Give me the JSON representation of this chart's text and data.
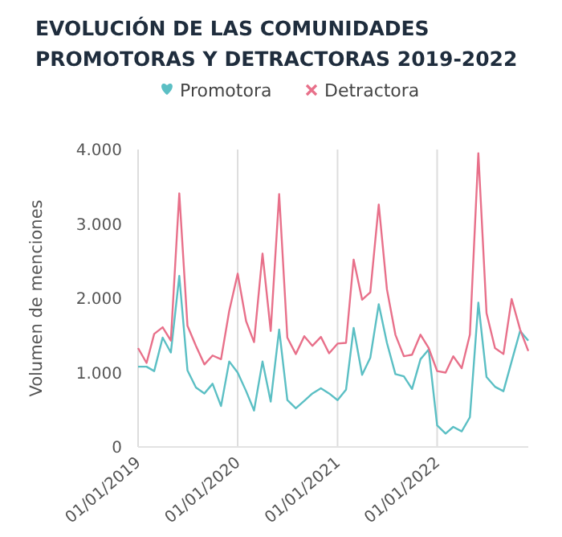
{
  "chart_data": {
    "type": "line",
    "title": "EVOLUCIÓN DE LAS COMUNIDADES PROMOTORAS Y DETRACTORAS 2019-2022",
    "ylabel": "Volumen de menciones",
    "x": [
      "2019-01",
      "2019-02",
      "2019-03",
      "2019-04",
      "2019-05",
      "2019-06",
      "2019-07",
      "2019-08",
      "2019-09",
      "2019-10",
      "2019-11",
      "2019-12",
      "2020-01",
      "2020-02",
      "2020-03",
      "2020-04",
      "2020-05",
      "2020-06",
      "2020-07",
      "2020-08",
      "2020-09",
      "2020-10",
      "2020-11",
      "2020-12",
      "2021-01",
      "2021-02",
      "2021-03",
      "2021-04",
      "2021-05",
      "2021-06",
      "2021-07",
      "2021-08",
      "2021-09",
      "2021-10",
      "2021-11",
      "2021-12",
      "2022-01",
      "2022-02",
      "2022-03",
      "2022-04",
      "2022-05",
      "2022-06",
      "2022-07",
      "2022-08",
      "2022-09",
      "2022-10",
      "2022-11",
      "2022-12"
    ],
    "series": [
      {
        "name": "Promotora",
        "color": "#5bbfc4",
        "values": [
          1080,
          1080,
          1020,
          1470,
          1270,
          2300,
          1030,
          800,
          720,
          850,
          550,
          1150,
          1000,
          750,
          490,
          1150,
          610,
          1580,
          630,
          520,
          620,
          720,
          790,
          720,
          630,
          770,
          1600,
          970,
          1200,
          1920,
          1400,
          980,
          950,
          780,
          1180,
          1310,
          290,
          180,
          270,
          210,
          400,
          1940,
          940,
          810,
          750,
          1150,
          1560,
          1430
        ]
      },
      {
        "name": "Detractora",
        "color": "#e8708a",
        "values": [
          1330,
          1130,
          1520,
          1610,
          1430,
          3410,
          1630,
          1360,
          1110,
          1230,
          1180,
          1830,
          2330,
          1690,
          1410,
          2600,
          1560,
          3400,
          1470,
          1250,
          1490,
          1360,
          1480,
          1260,
          1390,
          1400,
          2520,
          1980,
          2080,
          3260,
          2120,
          1510,
          1220,
          1240,
          1510,
          1330,
          1020,
          1000,
          1220,
          1060,
          1510,
          3950,
          1800,
          1330,
          1250,
          1990,
          1580,
          1290
        ]
      }
    ],
    "xlim": [
      "2019-01",
      "2022-12"
    ],
    "xticks": [
      {
        "value": "2019-01-01",
        "label": "01/01/2019"
      },
      {
        "value": "2020-01-01",
        "label": "01/01/2020"
      },
      {
        "value": "2021-01-01",
        "label": "01/01/2021"
      },
      {
        "value": "2022-01-01",
        "label": "01/01/2022"
      }
    ],
    "ylim": [
      0,
      4000
    ],
    "yticks": [
      0,
      {
        "value": 1000,
        "label": "1.000"
      },
      {
        "value": 2000,
        "label": "2.000"
      },
      {
        "value": 3000,
        "label": "3.000"
      },
      {
        "value": 4000,
        "label": "4.000"
      }
    ],
    "grid": "x",
    "legend": "top",
    "marker": "none",
    "line_style": "solid"
  }
}
